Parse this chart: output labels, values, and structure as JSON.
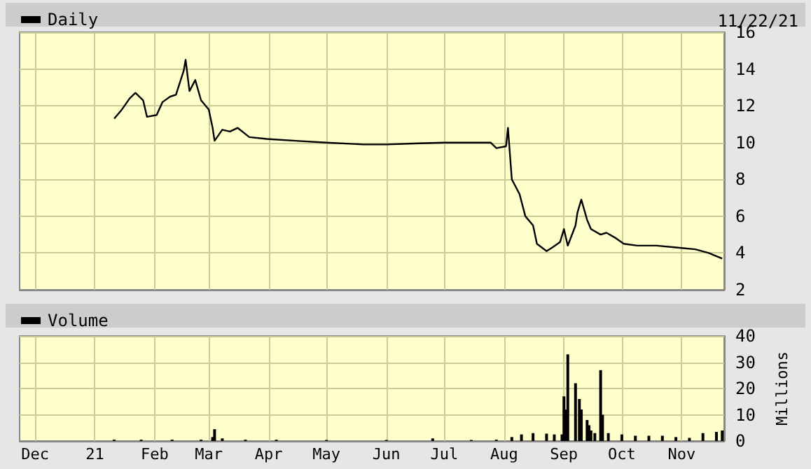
{
  "chart_data": [
    {
      "type": "line",
      "annotations": [
        "11/22/21"
      ],
      "legend": "top left",
      "grid": true,
      "tick_labels": "y",
      "marker": "none",
      "xlim": [
        "2020-11-23",
        "2021-11-23"
      ],
      "xticks": [
        {
          "value": "2020-12-01",
          "label": null
        },
        {
          "value": "2021-01-01",
          "label": null
        },
        {
          "value": "2021-02-01",
          "label": null
        },
        {
          "value": "2021-03-01",
          "label": null
        },
        {
          "value": "2021-04-01",
          "label": null
        },
        {
          "value": "2021-05-01",
          "label": null
        },
        {
          "value": "2021-06-01",
          "label": null
        },
        {
          "value": "2021-07-01",
          "label": null
        },
        {
          "value": "2021-08-01",
          "label": null
        },
        {
          "value": "2021-09-01",
          "label": null
        },
        {
          "value": "2021-10-01",
          "label": null
        },
        {
          "value": "2021-11-01",
          "label": null
        }
      ],
      "ylim": [
        2,
        16
      ],
      "yticks": [
        2,
        4,
        6,
        8,
        10,
        12,
        14,
        16
      ],
      "series": [
        {
          "name": "Daily",
          "color": "#000000",
          "x": [
            "2021-01-11",
            "2021-01-15",
            "2021-01-19",
            "2021-01-22",
            "2021-01-26",
            "2021-01-28",
            "2021-02-02",
            "2021-02-05",
            "2021-02-09",
            "2021-02-12",
            "2021-02-16",
            "2021-02-17",
            "2021-02-19",
            "2021-02-22",
            "2021-02-25",
            "2021-03-01",
            "2021-03-03",
            "2021-03-04",
            "2021-03-08",
            "2021-03-12",
            "2021-03-16",
            "2021-03-22",
            "2021-03-31",
            "2021-04-15",
            "2021-05-01",
            "2021-05-20",
            "2021-06-01",
            "2021-06-15",
            "2021-07-01",
            "2021-07-15",
            "2021-07-25",
            "2021-07-28",
            "2021-08-02",
            "2021-08-03",
            "2021-08-05",
            "2021-08-09",
            "2021-08-12",
            "2021-08-16",
            "2021-08-18",
            "2021-08-23",
            "2021-08-26",
            "2021-08-30",
            "2021-09-01",
            "2021-09-03",
            "2021-09-07",
            "2021-09-08",
            "2021-09-10",
            "2021-09-13",
            "2021-09-15",
            "2021-09-20",
            "2021-09-23",
            "2021-09-28",
            "2021-10-02",
            "2021-10-09",
            "2021-10-19",
            "2021-10-29",
            "2021-11-08",
            "2021-11-15",
            "2021-11-22"
          ],
          "values": [
            11.3,
            11.8,
            12.4,
            12.7,
            12.3,
            11.4,
            11.5,
            12.2,
            12.5,
            12.6,
            13.9,
            14.5,
            12.8,
            13.4,
            12.3,
            11.8,
            10.8,
            10.1,
            10.7,
            10.6,
            10.8,
            10.3,
            10.2,
            10.1,
            10.0,
            9.9,
            9.9,
            9.95,
            10.0,
            10.0,
            10.0,
            9.7,
            9.8,
            10.8,
            8.0,
            7.2,
            6.0,
            5.5,
            4.5,
            4.1,
            4.3,
            4.6,
            5.3,
            4.4,
            5.5,
            6.2,
            6.9,
            5.8,
            5.3,
            5.0,
            5.1,
            4.8,
            4.5,
            4.4,
            4.4,
            4.3,
            4.2,
            4.0,
            3.7
          ]
        }
      ]
    },
    {
      "type": "bar",
      "legend": "top left",
      "grid": true,
      "ylabel": "Millions",
      "xlim": [
        "2020-11-23",
        "2021-11-23"
      ],
      "xticks": [
        {
          "value": "2020-12-01",
          "label": "Dec"
        },
        {
          "value": "2021-01-01",
          "label": "21"
        },
        {
          "value": "2021-02-01",
          "label": "Feb"
        },
        {
          "value": "2021-03-01",
          "label": "Mar"
        },
        {
          "value": "2021-04-01",
          "label": "Apr"
        },
        {
          "value": "2021-05-01",
          "label": "May"
        },
        {
          "value": "2021-06-01",
          "label": "Jun"
        },
        {
          "value": "2021-07-01",
          "label": "Jul"
        },
        {
          "value": "2021-08-01",
          "label": "Aug"
        },
        {
          "value": "2021-09-01",
          "label": "Sep"
        },
        {
          "value": "2021-10-01",
          "label": "Oct"
        },
        {
          "value": "2021-11-01",
          "label": "Nov"
        }
      ],
      "ylim": [
        0,
        40
      ],
      "yticks": [
        0,
        10,
        20,
        30,
        40
      ],
      "series": [
        {
          "name": "Volume",
          "color": "#000000",
          "x": [
            "2021-01-11",
            "2021-01-25",
            "2021-02-10",
            "2021-02-25",
            "2021-03-03",
            "2021-03-04",
            "2021-03-08",
            "2021-03-20",
            "2021-04-05",
            "2021-05-01",
            "2021-06-01",
            "2021-06-25",
            "2021-07-15",
            "2021-07-28",
            "2021-08-05",
            "2021-08-10",
            "2021-08-16",
            "2021-08-23",
            "2021-08-27",
            "2021-08-31",
            "2021-09-01",
            "2021-09-02",
            "2021-09-03",
            "2021-09-07",
            "2021-09-09",
            "2021-09-10",
            "2021-09-13",
            "2021-09-14",
            "2021-09-15",
            "2021-09-17",
            "2021-09-20",
            "2021-09-21",
            "2021-09-24",
            "2021-10-01",
            "2021-10-08",
            "2021-10-15",
            "2021-10-22",
            "2021-10-29",
            "2021-11-05",
            "2021-11-12",
            "2021-11-19",
            "2021-11-22"
          ],
          "values": [
            0.5,
            0.5,
            0.5,
            0.5,
            1.5,
            4.5,
            1,
            0.5,
            0.5,
            0.4,
            0.4,
            1,
            0.4,
            0.5,
            1.5,
            2.5,
            3,
            2.8,
            2.5,
            2.5,
            17,
            12,
            33,
            22,
            16,
            12,
            8,
            6,
            4,
            3,
            27,
            10,
            3,
            2.5,
            2,
            2,
            2,
            1.5,
            1.2,
            3,
            3.5,
            4
          ]
        }
      ]
    }
  ]
}
